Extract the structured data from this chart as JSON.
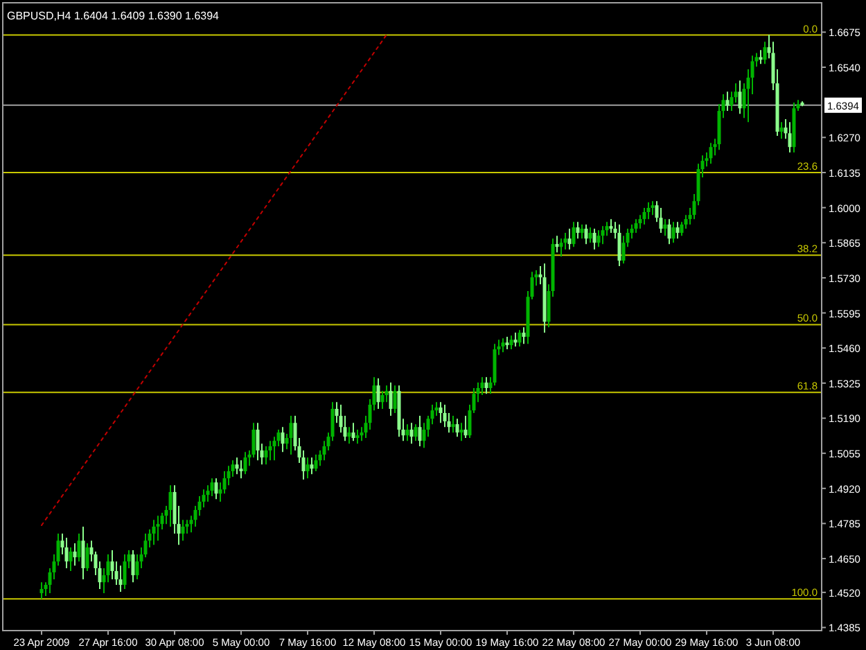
{
  "chart_data": {
    "type": "candlestick",
    "title": "GBPUSD,H4  1.6404 1.6409 1.6390 1.6394",
    "categories": [
      "23 Apr 2009",
      null,
      null,
      null,
      null,
      null,
      null,
      null,
      null,
      null,
      null,
      null,
      null,
      null,
      null,
      null,
      "27 Apr 16:00",
      null,
      null,
      null,
      null,
      null,
      null,
      null,
      null,
      null,
      null,
      null,
      null,
      null,
      null,
      null,
      "30 Apr 08:00",
      null,
      null,
      null,
      null,
      null,
      null,
      null,
      null,
      null,
      null,
      null,
      null,
      null,
      null,
      null,
      "5 May 00:00",
      null,
      null,
      null,
      null,
      null,
      null,
      null,
      null,
      null,
      null,
      null,
      null,
      null,
      null,
      null,
      "7 May 16:00",
      null,
      null,
      null,
      null,
      null,
      null,
      null,
      null,
      null,
      null,
      null,
      null,
      null,
      null,
      null,
      "12 May 08:00",
      null,
      null,
      null,
      null,
      null,
      null,
      null,
      null,
      null,
      null,
      null,
      null,
      null,
      null,
      null,
      "15 May 00:00",
      null,
      null,
      null,
      null,
      null,
      null,
      null,
      null,
      null,
      null,
      null,
      null,
      null,
      null,
      null,
      "19 May 16:00",
      null,
      null,
      null,
      null,
      null,
      null,
      null,
      null,
      null,
      null,
      null,
      null,
      null,
      null,
      null,
      "22 May 08:00",
      null,
      null,
      null,
      null,
      null,
      null,
      null,
      null,
      null,
      null,
      null,
      null,
      null,
      null,
      null,
      "27 May 00:00",
      null,
      null,
      null,
      null,
      null,
      null,
      null,
      null,
      null,
      null,
      null,
      null,
      null,
      null,
      null,
      "29 May 16:00",
      null,
      null,
      null,
      null,
      null,
      null,
      null,
      null,
      null,
      null,
      null,
      null,
      null,
      null,
      null,
      "3 Jun 08:00",
      null,
      null,
      null,
      null,
      null,
      null,
      null
    ],
    "ohlc": [
      [
        1.4517,
        1.4559,
        1.4495,
        1.4533
      ],
      [
        1.4533,
        1.4559,
        1.4506,
        1.4549
      ],
      [
        1.4549,
        1.4613,
        1.4517,
        1.4597
      ],
      [
        1.4597,
        1.4666,
        1.457,
        1.4639
      ],
      [
        1.4639,
        1.4746,
        1.4623,
        1.4719
      ],
      [
        1.4719,
        1.4746,
        1.4666,
        1.4693
      ],
      [
        1.4693,
        1.473,
        1.4613,
        1.4639
      ],
      [
        1.4639,
        1.4693,
        1.4602,
        1.4677
      ],
      [
        1.4677,
        1.4709,
        1.4623,
        1.4655
      ],
      [
        1.4655,
        1.4746,
        1.4639,
        1.4719
      ],
      [
        1.4719,
        1.4773,
        1.457,
        1.4613
      ],
      [
        1.4613,
        1.4709,
        1.4602,
        1.4693
      ],
      [
        1.4693,
        1.4719,
        1.4639,
        1.4666
      ],
      [
        1.4666,
        1.4677,
        1.4586,
        1.4613
      ],
      [
        1.4613,
        1.4639,
        1.4533,
        1.4559
      ],
      [
        1.4559,
        1.4613,
        1.4517,
        1.4586
      ],
      [
        1.4586,
        1.4666,
        1.4559,
        1.4639
      ],
      [
        1.4639,
        1.4682,
        1.457,
        1.4602
      ],
      [
        1.4602,
        1.4639,
        1.4549,
        1.457
      ],
      [
        1.457,
        1.4623,
        1.4522,
        1.4549
      ],
      [
        1.4549,
        1.4666,
        1.4533,
        1.4639
      ],
      [
        1.4639,
        1.4682,
        1.4613,
        1.4666
      ],
      [
        1.4666,
        1.4682,
        1.4559,
        1.4586
      ],
      [
        1.4586,
        1.4666,
        1.457,
        1.4639
      ],
      [
        1.4639,
        1.4693,
        1.4613,
        1.4666
      ],
      [
        1.4666,
        1.4746,
        1.4655,
        1.4719
      ],
      [
        1.4719,
        1.4762,
        1.4693,
        1.4746
      ],
      [
        1.4746,
        1.4799,
        1.4703,
        1.4773
      ],
      [
        1.4773,
        1.4815,
        1.4719,
        1.4783
      ],
      [
        1.4783,
        1.4826,
        1.4762,
        1.4815
      ],
      [
        1.4815,
        1.4853,
        1.4783,
        1.4837
      ],
      [
        1.4837,
        1.4932,
        1.4773,
        1.4906
      ],
      [
        1.4906,
        1.4932,
        1.4746,
        1.4783
      ],
      [
        1.4783,
        1.4853,
        1.4703,
        1.4746
      ],
      [
        1.4746,
        1.4799,
        1.4719,
        1.4773
      ],
      [
        1.4773,
        1.4799,
        1.4746,
        1.4783
      ],
      [
        1.4783,
        1.4815,
        1.4751,
        1.4799
      ],
      [
        1.4799,
        1.4853,
        1.4773,
        1.4837
      ],
      [
        1.4837,
        1.489,
        1.4815,
        1.4869
      ],
      [
        1.4869,
        1.4916,
        1.4847,
        1.4895
      ],
      [
        1.4895,
        1.4932,
        1.4869,
        1.4911
      ],
      [
        1.4911,
        1.4959,
        1.489,
        1.4943
      ],
      [
        1.4943,
        1.4959,
        1.4879,
        1.49
      ],
      [
        1.49,
        1.4943,
        1.4869,
        1.4916
      ],
      [
        1.4916,
        1.4986,
        1.49,
        1.4959
      ],
      [
        1.4959,
        1.5007,
        1.4932,
        1.4986
      ],
      [
        1.4986,
        1.5028,
        1.4965,
        1.5012
      ],
      [
        1.5012,
        1.5039,
        1.4975,
        1.4996
      ],
      [
        1.4996,
        1.5028,
        1.4959,
        1.4986
      ],
      [
        1.4986,
        1.506,
        1.4975,
        1.5039
      ],
      [
        1.5039,
        1.5066,
        1.5007,
        1.505
      ],
      [
        1.505,
        1.5172,
        1.5039,
        1.5146
      ],
      [
        1.5146,
        1.5172,
        1.5028,
        1.5066
      ],
      [
        1.5066,
        1.5092,
        1.5012,
        1.5039
      ],
      [
        1.5039,
        1.5082,
        1.5012,
        1.5066
      ],
      [
        1.5066,
        1.5103,
        1.5028,
        1.5082
      ],
      [
        1.5082,
        1.5119,
        1.5028,
        1.5103
      ],
      [
        1.5103,
        1.5146,
        1.5082,
        1.5135
      ],
      [
        1.5135,
        1.5156,
        1.506,
        1.5092
      ],
      [
        1.5092,
        1.513,
        1.5071,
        1.5114
      ],
      [
        1.5114,
        1.5199,
        1.505,
        1.5172
      ],
      [
        1.5172,
        1.5199,
        1.5066,
        1.5082
      ],
      [
        1.5082,
        1.5114,
        1.5018,
        1.5039
      ],
      [
        1.5039,
        1.5066,
        1.4954,
        1.4986
      ],
      [
        1.4986,
        1.5039,
        1.4959,
        1.5012
      ],
      [
        1.5012,
        1.5039,
        1.4975,
        1.4996
      ],
      [
        1.4996,
        1.505,
        1.4986,
        1.5028
      ],
      [
        1.5028,
        1.5066,
        1.5007,
        1.505
      ],
      [
        1.505,
        1.5103,
        1.5028,
        1.5082
      ],
      [
        1.5082,
        1.5135,
        1.5066,
        1.5119
      ],
      [
        1.5119,
        1.5252,
        1.5103,
        1.5226
      ],
      [
        1.5226,
        1.5252,
        1.5172,
        1.5199
      ],
      [
        1.5199,
        1.5242,
        1.5135,
        1.5156
      ],
      [
        1.5156,
        1.5199,
        1.5103,
        1.5119
      ],
      [
        1.5119,
        1.5156,
        1.5092,
        1.5135
      ],
      [
        1.5135,
        1.5172,
        1.5103,
        1.5114
      ],
      [
        1.5114,
        1.5146,
        1.5092,
        1.5124
      ],
      [
        1.5124,
        1.5156,
        1.5103,
        1.5135
      ],
      [
        1.5135,
        1.5199,
        1.5114,
        1.5172
      ],
      [
        1.5172,
        1.5263,
        1.5146,
        1.5242
      ],
      [
        1.5242,
        1.5348,
        1.522,
        1.5316
      ],
      [
        1.5316,
        1.5343,
        1.5226,
        1.5252
      ],
      [
        1.5252,
        1.5295,
        1.5226,
        1.5279
      ],
      [
        1.5279,
        1.5316,
        1.5252,
        1.5295
      ],
      [
        1.5295,
        1.5327,
        1.5199,
        1.5226
      ],
      [
        1.5226,
        1.5316,
        1.521,
        1.5295
      ],
      [
        1.5295,
        1.5316,
        1.5119,
        1.5146
      ],
      [
        1.5146,
        1.5188,
        1.5103,
        1.5124
      ],
      [
        1.5124,
        1.5167,
        1.5103,
        1.5146
      ],
      [
        1.5146,
        1.5172,
        1.5092,
        1.5119
      ],
      [
        1.5119,
        1.5167,
        1.5103,
        1.5156
      ],
      [
        1.5156,
        1.5199,
        1.5082,
        1.5103
      ],
      [
        1.5103,
        1.5172,
        1.5076,
        1.5146
      ],
      [
        1.5146,
        1.5199,
        1.5119,
        1.5188
      ],
      [
        1.5188,
        1.5242,
        1.5167,
        1.522
      ],
      [
        1.522,
        1.5252,
        1.5199,
        1.5231
      ],
      [
        1.5231,
        1.5252,
        1.5172,
        1.521
      ],
      [
        1.521,
        1.5242,
        1.5156,
        1.5178
      ],
      [
        1.5178,
        1.521,
        1.5135,
        1.5156
      ],
      [
        1.5156,
        1.5199,
        1.5135,
        1.5167
      ],
      [
        1.5167,
        1.5188,
        1.5119,
        1.5135
      ],
      [
        1.5135,
        1.5172,
        1.5103,
        1.5146
      ],
      [
        1.5146,
        1.5199,
        1.5114,
        1.5124
      ],
      [
        1.5124,
        1.5242,
        1.5114,
        1.522
      ],
      [
        1.522,
        1.5306,
        1.521,
        1.5284
      ],
      [
        1.5284,
        1.5327,
        1.5252,
        1.5306
      ],
      [
        1.5306,
        1.5348,
        1.5279,
        1.5327
      ],
      [
        1.5327,
        1.5348,
        1.5284,
        1.5306
      ],
      [
        1.5306,
        1.5348,
        1.5284,
        1.5327
      ],
      [
        1.5327,
        1.5476,
        1.5316,
        1.5455
      ],
      [
        1.5455,
        1.5492,
        1.5433,
        1.5466
      ],
      [
        1.5466,
        1.5497,
        1.5444,
        1.5481
      ],
      [
        1.5481,
        1.5503,
        1.5455,
        1.5471
      ],
      [
        1.5471,
        1.5508,
        1.5455,
        1.5492
      ],
      [
        1.5492,
        1.5519,
        1.5466,
        1.5481
      ],
      [
        1.5481,
        1.5529,
        1.5466,
        1.5519
      ],
      [
        1.5519,
        1.554,
        1.5476,
        1.5503
      ],
      [
        1.5503,
        1.5679,
        1.5476,
        1.5657
      ],
      [
        1.5657,
        1.5753,
        1.5647,
        1.5732
      ],
      [
        1.5732,
        1.5759,
        1.57,
        1.5743
      ],
      [
        1.5743,
        1.5775,
        1.5705,
        1.5732
      ],
      [
        1.5732,
        1.5785,
        1.5519,
        1.5561
      ],
      [
        1.5561,
        1.5705,
        1.554,
        1.5679
      ],
      [
        1.5679,
        1.5881,
        1.5657,
        1.586
      ],
      [
        1.586,
        1.5892,
        1.5828,
        1.5849
      ],
      [
        1.5849,
        1.5881,
        1.5812,
        1.5865
      ],
      [
        1.5865,
        1.5903,
        1.5839,
        1.5881
      ],
      [
        1.5881,
        1.5919,
        1.5839,
        1.586
      ],
      [
        1.586,
        1.5945,
        1.5849,
        1.5924
      ],
      [
        1.5924,
        1.5945,
        1.5881,
        1.5903
      ],
      [
        1.5903,
        1.5935,
        1.5881,
        1.5919
      ],
      [
        1.5919,
        1.5935,
        1.586,
        1.5881
      ],
      [
        1.5881,
        1.5924,
        1.5865,
        1.5903
      ],
      [
        1.5903,
        1.5919,
        1.5839,
        1.5865
      ],
      [
        1.5865,
        1.5913,
        1.5849,
        1.5892
      ],
      [
        1.5892,
        1.5929,
        1.586,
        1.5913
      ],
      [
        1.5913,
        1.5945,
        1.5892,
        1.5929
      ],
      [
        1.5929,
        1.5956,
        1.5903,
        1.5919
      ],
      [
        1.5919,
        1.5945,
        1.5881,
        1.5903
      ],
      [
        1.5903,
        1.5935,
        1.5775,
        1.5796
      ],
      [
        1.5796,
        1.5892,
        1.5785,
        1.5865
      ],
      [
        1.5865,
        1.5919,
        1.5849,
        1.5903
      ],
      [
        1.5903,
        1.5935,
        1.5881,
        1.5919
      ],
      [
        1.5919,
        1.5956,
        1.5903,
        1.594
      ],
      [
        1.594,
        1.5972,
        1.5919,
        1.5956
      ],
      [
        1.5956,
        1.5999,
        1.5935,
        1.5983
      ],
      [
        1.5983,
        1.602,
        1.5956,
        1.5999
      ],
      [
        1.5999,
        1.6025,
        1.5972,
        1.6009
      ],
      [
        1.6009,
        1.6025,
        1.5945,
        1.5961
      ],
      [
        1.5961,
        1.5999,
        1.5903,
        1.5919
      ],
      [
        1.5919,
        1.5956,
        1.5892,
        1.5935
      ],
      [
        1.5935,
        1.5956,
        1.586,
        1.5881
      ],
      [
        1.5881,
        1.5945,
        1.5865,
        1.5924
      ],
      [
        1.5924,
        1.5945,
        1.5881,
        1.5903
      ],
      [
        1.5903,
        1.5945,
        1.5892,
        1.5935
      ],
      [
        1.5935,
        1.5972,
        1.5919,
        1.5956
      ],
      [
        1.5956,
        1.5999,
        1.5935,
        1.5972
      ],
      [
        1.5972,
        1.6052,
        1.5956,
        1.6025
      ],
      [
        1.6025,
        1.6169,
        1.6009,
        1.6148
      ],
      [
        1.6148,
        1.6201,
        1.6116,
        1.618
      ],
      [
        1.618,
        1.6212,
        1.6158,
        1.619
      ],
      [
        1.619,
        1.6249,
        1.6169,
        1.6233
      ],
      [
        1.6233,
        1.6265,
        1.6201,
        1.6244
      ],
      [
        1.6244,
        1.6398,
        1.6222,
        1.6372
      ],
      [
        1.6372,
        1.6436,
        1.6345,
        1.6414
      ],
      [
        1.6414,
        1.6446,
        1.6372,
        1.6393
      ],
      [
        1.6393,
        1.6446,
        1.6372,
        1.6425
      ],
      [
        1.6425,
        1.6478,
        1.6404,
        1.6446
      ],
      [
        1.6446,
        1.6489,
        1.6361,
        1.6382
      ],
      [
        1.6382,
        1.6478,
        1.6345,
        1.6457
      ],
      [
        1.6457,
        1.6532,
        1.6329,
        1.65
      ],
      [
        1.65,
        1.6585,
        1.6436,
        1.6563
      ],
      [
        1.6563,
        1.6595,
        1.6542,
        1.6579
      ],
      [
        1.6579,
        1.6606,
        1.6553,
        1.6569
      ],
      [
        1.6569,
        1.6638,
        1.6553,
        1.6617
      ],
      [
        1.6617,
        1.6665,
        1.6574,
        1.6595
      ],
      [
        1.6595,
        1.6638,
        1.6452,
        1.6478
      ],
      [
        1.6478,
        1.6532,
        1.6276,
        1.6292
      ],
      [
        1.6292,
        1.6329,
        1.6265,
        1.6308
      ],
      [
        1.6308,
        1.634,
        1.6265,
        1.6286
      ],
      [
        1.6286,
        1.6329,
        1.6212,
        1.6233
      ],
      [
        1.6233,
        1.6404,
        1.6212,
        1.6382
      ],
      [
        1.6382,
        1.6414,
        1.6372,
        1.6398
      ],
      [
        1.6404,
        1.6409,
        1.639,
        1.6394
      ]
    ],
    "colors": [
      "#00b400",
      "#00b400",
      "#00b400",
      "#00b400",
      "#00b400",
      "#8cff8c",
      "#8cff8c",
      "#00b400",
      "#8cff8c",
      "#00b400",
      "#8cff8c",
      "#00b400",
      "#8cff8c",
      "#8cff8c",
      "#8cff8c",
      "#00b400",
      "#00b400",
      "#8cff8c",
      "#8cff8c",
      "#8cff8c",
      "#00b400",
      "#00b400",
      "#8cff8c",
      "#00b400",
      "#00b400",
      "#00b400",
      "#00b400",
      "#00b400",
      "#00b400",
      "#00b400",
      "#00b400",
      "#00b400",
      "#8cff8c",
      "#8cff8c",
      "#00b400",
      "#00b400",
      "#00b400",
      "#00b400",
      "#00b400",
      "#00b400",
      "#00b400",
      "#00b400",
      "#8cff8c",
      "#00b400",
      "#00b400",
      "#00b400",
      "#00b400",
      "#8cff8c",
      "#8cff8c",
      "#00b400",
      "#00b400",
      "#00b400",
      "#8cff8c",
      "#8cff8c",
      "#00b400",
      "#00b400",
      "#00b400",
      "#00b400",
      "#8cff8c",
      "#00b400",
      "#00b400",
      "#8cff8c",
      "#8cff8c",
      "#8cff8c",
      "#00b400",
      "#8cff8c",
      "#00b400",
      "#00b400",
      "#00b400",
      "#00b400",
      "#00b400",
      "#8cff8c",
      "#8cff8c",
      "#8cff8c",
      "#00b400",
      "#8cff8c",
      "#00b400",
      "#00b400",
      "#00b400",
      "#00b400",
      "#00b400",
      "#8cff8c",
      "#00b400",
      "#00b400",
      "#8cff8c",
      "#00b400",
      "#8cff8c",
      "#8cff8c",
      "#00b400",
      "#8cff8c",
      "#00b400",
      "#8cff8c",
      "#00b400",
      "#00b400",
      "#00b400",
      "#00b400",
      "#8cff8c",
      "#8cff8c",
      "#8cff8c",
      "#00b400",
      "#8cff8c",
      "#00b400",
      "#8cff8c",
      "#00b400",
      "#00b400",
      "#00b400",
      "#00b400",
      "#8cff8c",
      "#00b400",
      "#00b400",
      "#00b400",
      "#00b400",
      "#8cff8c",
      "#00b400",
      "#8cff8c",
      "#00b400",
      "#8cff8c",
      "#00b400",
      "#00b400",
      "#00b400",
      "#8cff8c",
      "#8cff8c",
      "#00b400",
      "#00b400",
      "#8cff8c",
      "#00b400",
      "#00b400",
      "#8cff8c",
      "#00b400",
      "#8cff8c",
      "#00b400",
      "#8cff8c",
      "#00b400",
      "#8cff8c",
      "#00b400",
      "#00b400",
      "#00b400",
      "#8cff8c",
      "#8cff8c",
      "#8cff8c",
      "#00b400",
      "#00b400",
      "#00b400",
      "#00b400",
      "#00b400",
      "#00b400",
      "#00b400",
      "#00b400",
      "#8cff8c",
      "#8cff8c",
      "#00b400",
      "#8cff8c",
      "#00b400",
      "#8cff8c",
      "#00b400",
      "#00b400",
      "#00b400",
      "#00b400",
      "#00b400",
      "#00b400",
      "#00b400",
      "#00b400",
      "#00b400",
      "#00b400",
      "#00b400",
      "#8cff8c",
      "#00b400",
      "#00b400",
      "#8cff8c",
      "#00b400",
      "#00b400",
      "#00b400",
      "#00b400",
      "#8cff8c",
      "#00b400",
      "#8cff8c",
      "#8cff8c",
      "#8cff8c",
      "#00b400",
      "#8cff8c",
      "#8cff8c",
      "#00b400",
      "#00b400",
      "#8cff8c"
    ],
    "series": [
      {
        "type": "line",
        "color": "#c00000",
        "line_style": "dotted",
        "values": [
          1.4778,
          null,
          null,
          null,
          null,
          null,
          null,
          null,
          null,
          null,
          null,
          null,
          null,
          null,
          null,
          null,
          null,
          null,
          null,
          null,
          null,
          null,
          null,
          null,
          null,
          null,
          null,
          null,
          null,
          null,
          null,
          null,
          null,
          null,
          null,
          null,
          null,
          null,
          null,
          null,
          null,
          null,
          null,
          null,
          null,
          null,
          null,
          null,
          null,
          null,
          null,
          null,
          null,
          null,
          null,
          null,
          null,
          null,
          null,
          null,
          null,
          null,
          null,
          null,
          null,
          null,
          null,
          null,
          null,
          null,
          null,
          null,
          null,
          null,
          null,
          null,
          null,
          null,
          null,
          null,
          null,
          null,
          null,
          1.6665,
          null,
          null,
          null,
          null,
          null,
          null,
          null,
          null,
          null,
          null,
          null,
          null,
          null,
          null,
          null,
          null,
          null,
          null,
          null,
          null,
          null,
          null,
          null,
          null,
          null,
          null,
          null,
          null,
          null,
          null,
          null,
          null,
          null,
          null,
          null,
          null,
          null,
          null,
          null,
          null,
          null,
          null,
          null,
          null,
          null,
          null,
          null,
          null,
          null,
          null,
          null,
          null,
          null,
          null,
          null,
          null,
          null,
          null,
          null,
          null,
          null,
          null,
          null,
          null,
          null,
          null,
          null,
          null,
          null,
          null,
          null,
          null,
          null,
          null,
          null,
          null,
          null,
          null,
          null,
          null,
          null,
          null,
          null,
          null,
          null,
          null,
          null,
          null,
          null,
          null,
          null,
          null,
          null,
          null,
          null,
          null,
          null,
          null,
          null,
          null
        ]
      }
    ],
    "ylim": [
      1.4373,
      1.6788
    ],
    "yticks": [
      {
        "value": 1.6675,
        "label": "1.6675"
      },
      {
        "value": 1.654,
        "label": "1.6540"
      },
      {
        "value": 1.627,
        "label": "1.6270"
      },
      {
        "value": 1.6135,
        "label": "1.6135"
      },
      {
        "value": 1.6,
        "label": "1.6000"
      },
      {
        "value": 1.5865,
        "label": "1.5865"
      },
      {
        "value": 1.573,
        "label": "1.5730"
      },
      {
        "value": 1.5595,
        "label": "1.5595"
      },
      {
        "value": 1.546,
        "label": "1.5460"
      },
      {
        "value": 1.5325,
        "label": "1.5325"
      },
      {
        "value": 1.519,
        "label": "1.5190"
      },
      {
        "value": 1.5055,
        "label": "1.5055"
      },
      {
        "value": 1.492,
        "label": "1.4920"
      },
      {
        "value": 1.4785,
        "label": "1.4785"
      },
      {
        "value": 1.465,
        "label": "1.4650"
      },
      {
        "value": 1.452,
        "label": "1.4520"
      },
      {
        "value": 1.4385,
        "label": "1.4385"
      }
    ],
    "ref_lines": [
      {
        "axis": "y",
        "value": 1.6664,
        "color": "#c8c800"
      },
      {
        "axis": "y",
        "value": 1.6135,
        "color": "#c8c800"
      },
      {
        "axis": "y",
        "value": 1.5817,
        "color": "#c8c800"
      },
      {
        "axis": "y",
        "value": 1.555,
        "color": "#c8c800"
      },
      {
        "axis": "y",
        "value": 1.5289,
        "color": "#c8c800"
      },
      {
        "axis": "y",
        "value": 1.4495,
        "color": "#c8c800"
      },
      {
        "axis": "y",
        "value": 1.6394,
        "label": "1.6394",
        "color": "#a0a0a0"
      }
    ],
    "annotations": [
      {
        "text": "0.0",
        "y": 1.6664
      },
      {
        "text": "23.6",
        "y": 1.6135
      },
      {
        "text": "38.2",
        "y": 1.5817
      },
      {
        "text": "50.0",
        "y": 1.555
      },
      {
        "text": "61.8",
        "y": 1.5289
      },
      {
        "text": "100.0",
        "y": 1.4495
      }
    ]
  }
}
